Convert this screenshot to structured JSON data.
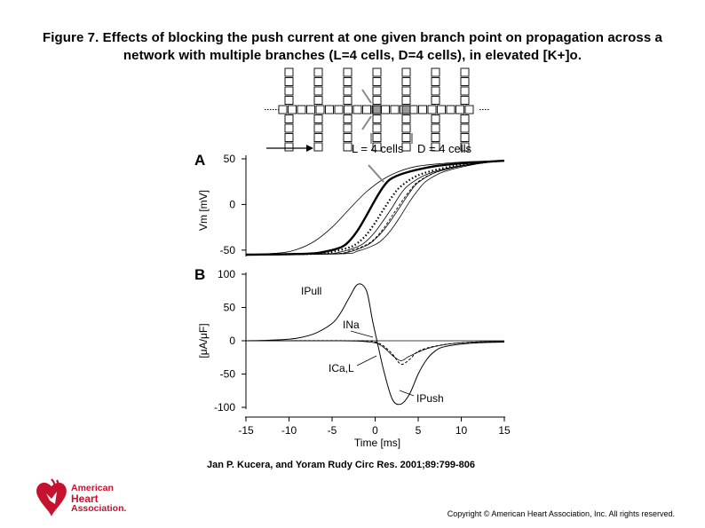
{
  "figure": {
    "title_line1": "Figure 7. Effects of blocking the push current at one given branch point on propagation across a",
    "title_line2": "network with multiple branches (L=4 cells, D=4 cells), in elevated [K+]o.",
    "citation": "Jan P. Kucera, and Yoram Rudy Circ Res. 2001;89:799-806",
    "copyright": "Copyright © American Heart Association, Inc. All rights reserved.",
    "logo": {
      "line1": "American",
      "line2": "Heart",
      "line3": "Association.",
      "color": "#c41230"
    }
  },
  "schematic": {
    "label_l": "L = 4 cells",
    "label_d": "D = 4 cells",
    "branch_count": 7,
    "blocked_branch_index": 3
  },
  "chart_data": [
    {
      "type": "line",
      "panel_label": "A",
      "ylabel": "Vm [mV]",
      "xlim": [
        -15,
        15
      ],
      "ylim": [
        -55,
        50
      ],
      "yticks": [
        50,
        0,
        -50
      ],
      "ytick_labels": [
        "50",
        "0",
        "-50"
      ],
      "series": [
        {
          "style": "thin",
          "x": [
            -15,
            -11,
            -9,
            -7,
            -5,
            -3,
            -1,
            1,
            3,
            5,
            8,
            11,
            15
          ],
          "y": [
            -55,
            -53,
            -49,
            -40,
            -25,
            -5,
            14,
            28,
            37,
            42,
            45,
            47,
            48
          ]
        },
        {
          "style": "thick",
          "x": [
            -15,
            -8,
            -6,
            -4,
            -3,
            -2,
            -1,
            0,
            1,
            2,
            4,
            7,
            10,
            15
          ],
          "y": [
            -55,
            -54,
            -52,
            -47,
            -40,
            -28,
            -12,
            5,
            20,
            29,
            36,
            42,
            45,
            48
          ]
        },
        {
          "style": "dotted",
          "x": [
            -15,
            -7,
            -5,
            -3,
            -2,
            -1,
            0,
            1,
            2,
            3,
            5,
            8,
            11,
            15
          ],
          "y": [
            -55,
            -54,
            -52,
            -47,
            -42,
            -33,
            -20,
            -5,
            9,
            20,
            32,
            40,
            45,
            48
          ]
        },
        {
          "style": "thin",
          "x": [
            -15,
            -6,
            -4,
            -2,
            -1,
            0,
            1,
            2,
            3,
            4,
            6,
            9,
            12,
            15
          ],
          "y": [
            -55,
            -54,
            -52,
            -46,
            -40,
            -30,
            -17,
            -3,
            12,
            22,
            33,
            41,
            45,
            48
          ]
        },
        {
          "style": "thin",
          "x": [
            -15,
            -5,
            -3,
            -1,
            0,
            1,
            2,
            3,
            4,
            5,
            7,
            10,
            13,
            15
          ],
          "y": [
            -55,
            -54,
            -52,
            -45,
            -38,
            -28,
            -15,
            -1,
            13,
            24,
            35,
            42,
            46,
            48
          ]
        },
        {
          "style": "dashed",
          "x": [
            -15,
            -5,
            -3,
            -1,
            0,
            1,
            2,
            3,
            4,
            5,
            7,
            10,
            13,
            15
          ],
          "y": [
            -55,
            -54,
            -51,
            -44,
            -37,
            -26,
            -12,
            2,
            15,
            25,
            35,
            42,
            46,
            48
          ]
        },
        {
          "style": "thin",
          "x": [
            -15,
            -4,
            -2,
            0,
            1,
            2,
            3,
            4,
            5,
            6,
            8,
            11,
            13,
            15
          ],
          "y": [
            -55,
            -54,
            -51,
            -44,
            -37,
            -26,
            -12,
            3,
            16,
            26,
            36,
            43,
            46,
            48
          ]
        }
      ]
    },
    {
      "type": "line",
      "panel_label": "B",
      "ylabel": "[μA/μF]",
      "xlabel": "Time [ms]",
      "xlim": [
        -15,
        15
      ],
      "ylim": [
        -100,
        100
      ],
      "xticks": [
        -15,
        -10,
        -5,
        0,
        5,
        10,
        15
      ],
      "xtick_labels": [
        "-15",
        "-10",
        "-5",
        "0",
        "5",
        "10",
        "15"
      ],
      "yticks": [
        100,
        50,
        0,
        -50,
        -100
      ],
      "ytick_labels": [
        "100",
        "50",
        "0",
        "-50",
        "-100"
      ],
      "annotations": [
        "IPull",
        "INa",
        "ICa,L",
        "IPush"
      ],
      "series": [
        {
          "name": "IPull / IPush",
          "style": "solid",
          "x": [
            -15,
            -13,
            -11,
            -9,
            -7,
            -5,
            -4,
            -3,
            -2,
            -1,
            -0.3,
            0.3,
            1,
            2,
            3,
            4,
            5,
            6,
            7,
            8,
            10,
            12,
            15
          ],
          "y": [
            0,
            0.5,
            1.5,
            4,
            11,
            26,
            42,
            65,
            85,
            75,
            30,
            -5,
            -45,
            -88,
            -95,
            -80,
            -50,
            -28,
            -15,
            -9,
            -5,
            -3,
            -2
          ]
        },
        {
          "name": "INa",
          "style": "solid",
          "x": [
            -15,
            -5,
            -2,
            0,
            1,
            2,
            3,
            4,
            6,
            8,
            10,
            12,
            15
          ],
          "y": [
            0,
            0,
            -0.5,
            -3,
            -10,
            -22,
            -30,
            -23,
            -12,
            -6,
            -3,
            -1.5,
            -1
          ]
        },
        {
          "name": "ICa,L",
          "style": "dashed",
          "x": [
            -15,
            -2,
            0,
            1,
            2,
            3,
            4,
            5,
            7,
            10,
            15
          ],
          "y": [
            0,
            0,
            -2,
            -8,
            -20,
            -35,
            -28,
            -16,
            -8,
            -3,
            -1
          ]
        }
      ]
    }
  ]
}
